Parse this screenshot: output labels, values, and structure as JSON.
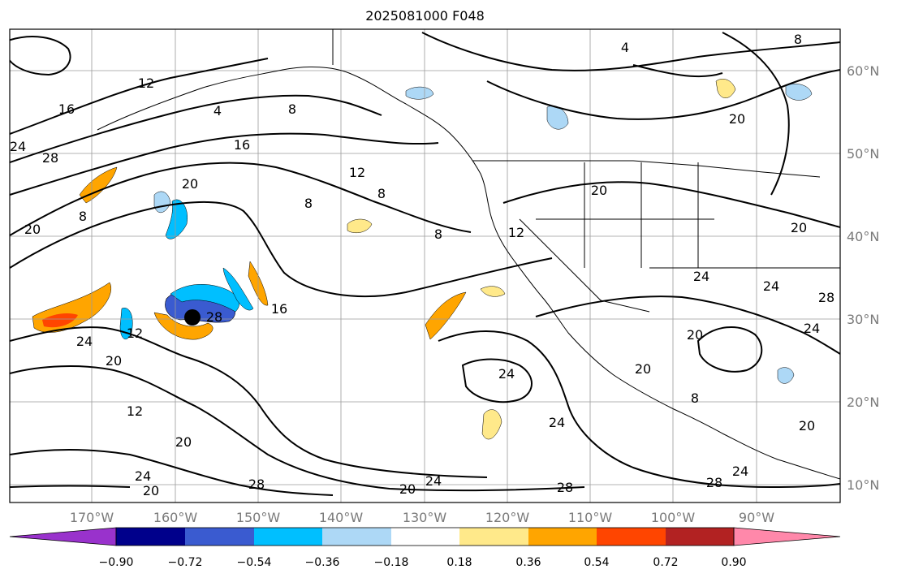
{
  "title": "2025081000 F048",
  "latitude_labels": [
    "60°N",
    "50°N",
    "40°N",
    "30°N",
    "20°N",
    "10°N"
  ],
  "longitude_labels": [
    "170°W",
    "160°W",
    "150°W",
    "140°W",
    "130°W",
    "120°W",
    "110°W",
    "100°W",
    "90°W"
  ],
  "colorbar": {
    "tick_labels": [
      "−0.90",
      "−0.72",
      "−0.54",
      "−0.36",
      "−0.18",
      "0.18",
      "0.36",
      "0.54",
      "0.72",
      "0.90"
    ],
    "colors": [
      "#9932cc",
      "#00008b",
      "#3a5bd0",
      "#00bfff",
      "#add8f6",
      "#ffffff",
      "#ffe98a",
      "#ffa500",
      "#ff4500",
      "#b22222",
      "#ff88aa"
    ]
  },
  "contour_labels": [
    "4",
    "8",
    "8",
    "12",
    "16",
    "16",
    "16",
    "20",
    "20",
    "24",
    "28",
    "4",
    "12",
    "8",
    "8",
    "8",
    "12",
    "8",
    "20",
    "20",
    "24",
    "24",
    "28",
    "20",
    "8",
    "24",
    "24",
    "20",
    "28",
    "24",
    "24",
    "20",
    "20",
    "24",
    "12",
    "20",
    "12",
    "24",
    "20",
    "28",
    "20",
    "28",
    "28",
    "24",
    "20"
  ]
}
